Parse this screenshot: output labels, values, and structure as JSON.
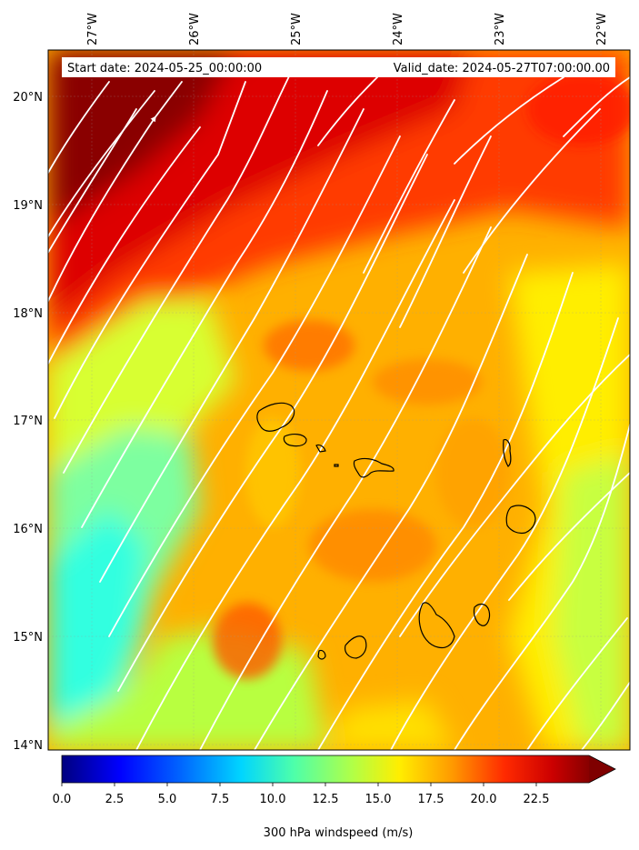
{
  "header": {
    "start_date": "Start date: 2024-05-25_00:00:00",
    "valid_date": "Valid_date: 2024-05-27T07:00:00.00"
  },
  "axes": {
    "lon_labels": [
      "27°W",
      "26°W",
      "25°W",
      "24°W",
      "23°W",
      "22°W"
    ],
    "lat_labels": [
      "20°N",
      "19°N",
      "18°N",
      "17°N",
      "16°N",
      "15°N",
      "14°N"
    ]
  },
  "colorbar": {
    "label": "300 hPa windspeed (m/s)",
    "ticks": [
      "0.0",
      "2.5",
      "5.0",
      "7.5",
      "10.0",
      "12.5",
      "15.0",
      "17.5",
      "20.0",
      "22.5"
    ],
    "range": [
      0,
      25
    ],
    "extend": "max",
    "colormap": "jet"
  },
  "map": {
    "variable": "300 hPa windspeed",
    "units": "m/s",
    "lon_range": [
      -27.4,
      -21.7
    ],
    "lat_range": [
      13.95,
      20.4
    ],
    "streamlines": true,
    "coastline_color": "#000000",
    "streamline_color": "#ffffff"
  }
}
